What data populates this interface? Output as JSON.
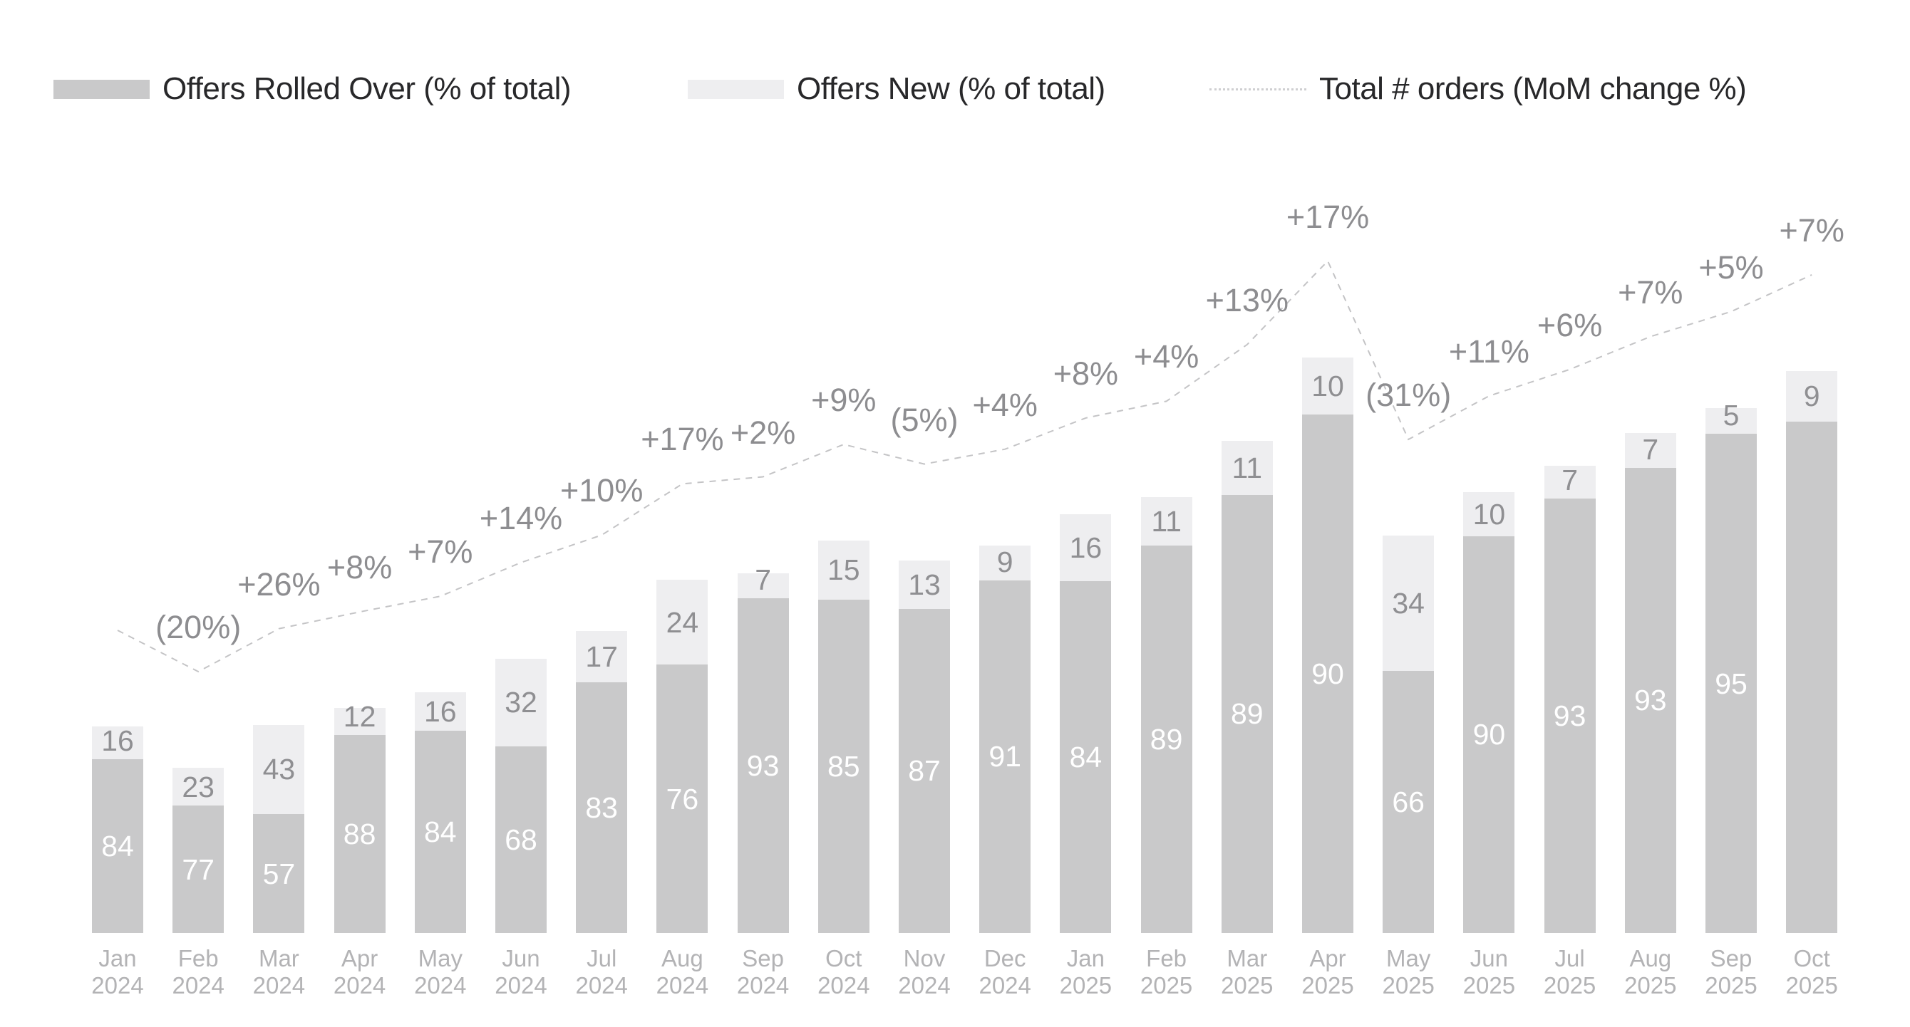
{
  "legend": {
    "items": [
      {
        "label": "Offers Rolled Over (% of total)",
        "swatch": "filled-bar",
        "color": "#c9c9ca"
      },
      {
        "label": "Offers New (% of total)",
        "swatch": "filled-bar",
        "color": "#eeeef0"
      },
      {
        "label": "Total # orders (MoM change %)",
        "swatch": "dotted-line",
        "color": "#c4c4c6"
      }
    ]
  },
  "chart_data": {
    "type": "bar",
    "subtype": "100pct-stacked-columns-scaled-by-total-with-dotted-index-line",
    "title": "",
    "legend_position": "top",
    "grid": false,
    "y_axis_shown": false,
    "categories": [
      "Jan 2024",
      "Feb 2024",
      "Mar 2024",
      "Apr 2024",
      "May 2024",
      "Jun 2024",
      "Jul 2024",
      "Aug 2024",
      "Sep 2024",
      "Oct 2024",
      "Nov 2024",
      "Dec 2024",
      "Jan 2025",
      "Feb 2025",
      "Mar 2025",
      "Apr 2025",
      "May 2025",
      "Jun 2025",
      "Jul 2025",
      "Aug 2025",
      "Sep 2025",
      "Oct 2025"
    ],
    "series": [
      {
        "name": "Offers Rolled Over (% of total)",
        "color": "#c9c9ca",
        "values": [
          84,
          77,
          57,
          88,
          84,
          68,
          83,
          76,
          93,
          85,
          87,
          91,
          84,
          89,
          89,
          90,
          66,
          90,
          93,
          93,
          95,
          91
        ],
        "value_labels": [
          "84",
          "77",
          "57",
          "88",
          "84",
          "68",
          "83",
          "76",
          "93",
          "85",
          "87",
          "91",
          "84",
          "89",
          "89",
          "90",
          "66",
          "90",
          "93",
          "93",
          "95",
          ""
        ]
      },
      {
        "name": "Offers New (% of total)",
        "color": "#eeeef0",
        "values": [
          16,
          23,
          43,
          12,
          16,
          32,
          17,
          24,
          7,
          15,
          13,
          9,
          16,
          11,
          11,
          10,
          34,
          10,
          7,
          7,
          5,
          9
        ],
        "value_labels": [
          "16",
          "23",
          "43",
          "12",
          "16",
          "32",
          "17",
          "24",
          "7",
          "15",
          "13",
          "9",
          "16",
          "11",
          "11",
          "10",
          "34",
          "10",
          "7",
          "7",
          "5",
          "9"
        ]
      }
    ],
    "line": {
      "name": "Total # orders (MoM change %)",
      "style": "dotted",
      "color": "#c4c4c6",
      "mom_change_labels": [
        "",
        "(20%)",
        "+26%",
        "+8%",
        "+7%",
        "+14%",
        "+10%",
        "+17%",
        "+2%",
        "+9%",
        "(5%)",
        "+4%",
        "+8%",
        "+4%",
        "+13%",
        "+17%",
        "(31%)",
        "+11%",
        "+6%",
        "+7%",
        "+5%",
        "+7%"
      ],
      "mom_change_pct": [
        null,
        -20,
        26,
        8,
        7,
        14,
        10,
        17,
        2,
        9,
        -5,
        4,
        8,
        4,
        13,
        17,
        -31,
        11,
        6,
        7,
        5,
        7
      ],
      "indexed_total_jan2024_eq_100": [
        100,
        80,
        100.8,
        108.9,
        116.5,
        132.8,
        146.1,
        170.9,
        174.3,
        190,
        180.5,
        187.7,
        202.8,
        210.9,
        238.3,
        278.8,
        192.4,
        213.5,
        226.3,
        242.2,
        254.3,
        272.1
      ]
    }
  }
}
